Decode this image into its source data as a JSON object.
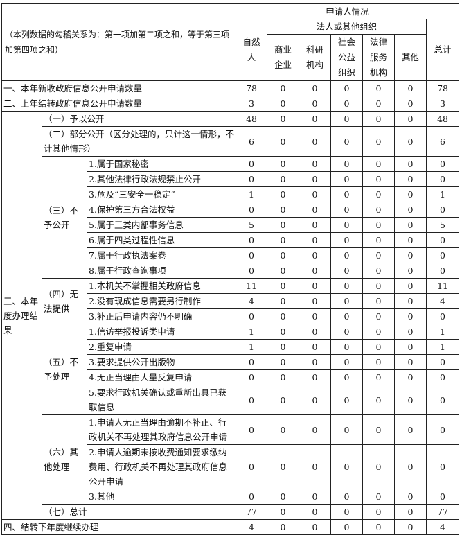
{
  "header": {
    "note": "（本列数据的勾稽关系为：第一项加第二项之和，等于第三项加第四项之和）",
    "applicant": "申请人情况",
    "natural": "自然人",
    "legal_group": "法人或其他组织",
    "legal_cols": [
      "商业企业",
      "科研机构",
      "社会公益组织",
      "法律服务机构",
      "其他"
    ],
    "total": "总计"
  },
  "rows_top": [
    {
      "label": "一、本年新收政府信息公开申请数量",
      "values": [
        78,
        0,
        0,
        0,
        0,
        0,
        78
      ]
    },
    {
      "label": "二、上年结转政府信息公开申请数量",
      "values": [
        3,
        0,
        0,
        0,
        0,
        0,
        3
      ]
    }
  ],
  "section3": {
    "label": "三、本年度办理结果",
    "groups": [
      {
        "label": "（一）予以公开",
        "values": [
          48,
          0,
          0,
          0,
          0,
          0,
          48
        ]
      },
      {
        "label": "（二）部分公开（区分处理的，只计这一情形，不计其他情形）",
        "values": [
          6,
          0,
          0,
          0,
          0,
          0,
          6
        ]
      },
      {
        "label": "（三）不予公开",
        "items": [
          {
            "label": "1.属于国家秘密",
            "values": [
              0,
              0,
              0,
              0,
              0,
              0,
              0
            ]
          },
          {
            "label": "2.其他法律行政法规禁止公开",
            "values": [
              0,
              0,
              0,
              0,
              0,
              0,
              0
            ]
          },
          {
            "label": "3.危及“三安全一稳定”",
            "values": [
              1,
              0,
              0,
              0,
              0,
              0,
              1
            ]
          },
          {
            "label": "4.保护第三方合法权益",
            "values": [
              0,
              0,
              0,
              0,
              0,
              0,
              0
            ]
          },
          {
            "label": "5.属于三类内部事务信息",
            "values": [
              5,
              0,
              0,
              0,
              0,
              0,
              5
            ]
          },
          {
            "label": "6.属于四类过程性信息",
            "values": [
              0,
              0,
              0,
              0,
              0,
              0,
              0
            ]
          },
          {
            "label": "7.属于行政执法案卷",
            "values": [
              0,
              0,
              0,
              0,
              0,
              0,
              0
            ]
          },
          {
            "label": "8.属于行政查询事项",
            "values": [
              0,
              0,
              0,
              0,
              0,
              0,
              0
            ]
          }
        ]
      },
      {
        "label": "（四）无法提供",
        "items": [
          {
            "label": "1.本机关不掌握相关政府信息",
            "values": [
              11,
              0,
              0,
              0,
              0,
              0,
              11
            ]
          },
          {
            "label": "2.没有现成信息需要另行制作",
            "values": [
              4,
              0,
              0,
              0,
              0,
              0,
              4
            ]
          },
          {
            "label": "3.补正后申请内容仍不明确",
            "values": [
              0,
              0,
              0,
              0,
              0,
              0,
              0
            ]
          }
        ]
      },
      {
        "label": "（五）不予处理",
        "items": [
          {
            "label": "1.信访举报投诉类申请",
            "values": [
              1,
              0,
              0,
              0,
              0,
              0,
              1
            ]
          },
          {
            "label": "2.重复申请",
            "values": [
              1,
              0,
              0,
              0,
              0,
              0,
              1
            ]
          },
          {
            "label": "3.要求提供公开出版物",
            "values": [
              0,
              0,
              0,
              0,
              0,
              0,
              0
            ]
          },
          {
            "label": "4.无正当理由大量反复申请",
            "values": [
              0,
              0,
              0,
              0,
              0,
              0,
              0
            ]
          },
          {
            "label": "5.要求行政机关确认或重新出具已获取信息",
            "values": [
              0,
              0,
              0,
              0,
              0,
              0,
              0
            ]
          }
        ]
      },
      {
        "label": "（六）其他处理",
        "items": [
          {
            "label": "1.申请人无正当理由逾期不补正、行政机关不再处理其政府信息公开申请",
            "values": [
              0,
              0,
              0,
              0,
              0,
              0,
              0
            ]
          },
          {
            "label": "2.申请人逾期未按收费通知要求缴纳费用、行政机关不再处理其政府信息公开申请",
            "values": [
              0,
              0,
              0,
              0,
              0,
              0,
              0
            ]
          },
          {
            "label": "3.其他",
            "values": [
              0,
              0,
              0,
              0,
              0,
              0,
              0
            ]
          }
        ]
      },
      {
        "label": "（七）总计",
        "values": [
          77,
          0,
          0,
          0,
          0,
          0,
          77
        ]
      }
    ]
  },
  "rows_bottom": [
    {
      "label": "四、结转下年度继续办理",
      "values": [
        4,
        0,
        0,
        0,
        0,
        0,
        4
      ]
    }
  ]
}
